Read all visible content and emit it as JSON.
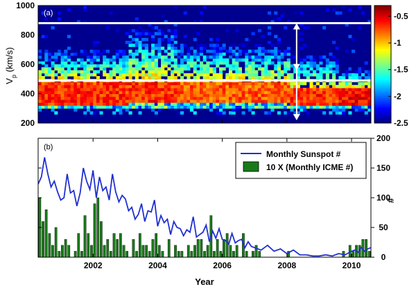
{
  "chart_data": [
    {
      "panel_label": "(a)",
      "type": "heatmap",
      "title": "",
      "ylabel_main": "V",
      "ylabel_sub": "p",
      "ylabel_unit": "(km/s)",
      "xlim": [
        2000.3,
        2010.6
      ],
      "ylim": [
        200,
        1000
      ],
      "yticks": [
        200,
        400,
        600,
        800,
        1000
      ],
      "colorbar": {
        "vmin": -2.5,
        "vmax": -0.3,
        "ticks": [
          -2.5,
          -2,
          -1.5,
          -1,
          -0.5
        ],
        "tick_labels": [
          "-2.5",
          "-2",
          "-1.5",
          "-1",
          "-0.5"
        ],
        "colormap": "jet"
      },
      "background_color": "#00008f",
      "horizontal_lines": [
        880,
        490
      ],
      "line_color": "#ffffff",
      "double_arrow": {
        "x": 2008.3,
        "from": 200,
        "to": 880
      },
      "single_arrow_tip": {
        "x": 2008.3,
        "at": 560
      },
      "profile_summary": [
        {
          "period": "2000.3-2003.0",
          "core_range": [
            320,
            470
          ],
          "core_value": -0.5,
          "tail_to": 680
        },
        {
          "period": "2003.0-2004.5",
          "core_range": [
            330,
            470
          ],
          "core_value": -0.5,
          "tail_to": 830
        },
        {
          "period": "2004.5-2008.0",
          "core_range": [
            330,
            470
          ],
          "core_value": -0.6,
          "tail_to": 720
        },
        {
          "period": "2008.0-2009.5",
          "core_range": [
            310,
            430
          ],
          "core_value": -0.5,
          "tail_to": 640
        },
        {
          "period": "2009.5-2010.6",
          "core_range": [
            310,
            420
          ],
          "core_value": -0.4,
          "tail_to": 560
        }
      ]
    },
    {
      "panel_label": "(b)",
      "type": "line+bar",
      "xlabel": "Year",
      "right_ylabel": "#",
      "xlim": [
        2000.3,
        2010.6
      ],
      "ylim": [
        0,
        200
      ],
      "xticks": [
        2002,
        2004,
        2006,
        2008,
        2010
      ],
      "xtick_labels": [
        "2002",
        "2004",
        "2006",
        "2008",
        "2010"
      ],
      "yticks_right": [
        0,
        50,
        100,
        150,
        200
      ],
      "ytick_labels_right": [
        "0",
        "50",
        "100",
        "150",
        "200"
      ],
      "legend": {
        "position": "top-right",
        "entries": [
          "Monthly Sunspot #",
          "10 X (Monthly ICME #)"
        ]
      },
      "series": [
        {
          "name": "Monthly Sunspot #",
          "type": "line",
          "color": "#1f2fd0",
          "x": [
            2000.3,
            2000.4,
            2000.5,
            2000.6,
            2000.7,
            2000.8,
            2000.9,
            2001.0,
            2001.1,
            2001.2,
            2001.3,
            2001.4,
            2001.5,
            2001.6,
            2001.7,
            2001.8,
            2001.9,
            2002.0,
            2002.1,
            2002.2,
            2002.3,
            2002.4,
            2002.5,
            2002.6,
            2002.7,
            2002.8,
            2002.9,
            2003.0,
            2003.1,
            2003.2,
            2003.3,
            2003.4,
            2003.5,
            2003.6,
            2003.7,
            2003.8,
            2003.9,
            2004.0,
            2004.1,
            2004.2,
            2004.3,
            2004.4,
            2004.5,
            2004.6,
            2004.7,
            2004.8,
            2004.9,
            2005.0,
            2005.1,
            2005.2,
            2005.3,
            2005.4,
            2005.5,
            2005.6,
            2005.7,
            2005.8,
            2005.9,
            2006.0,
            2006.1,
            2006.2,
            2006.3,
            2006.4,
            2006.5,
            2006.6,
            2006.7,
            2006.8,
            2006.9,
            2007.0,
            2007.2,
            2007.4,
            2007.6,
            2007.8,
            2008.0,
            2008.2,
            2008.4,
            2008.6,
            2008.8,
            2009.0,
            2009.2,
            2009.4,
            2009.6,
            2009.8,
            2010.0,
            2010.1,
            2010.2,
            2010.3,
            2010.4,
            2010.5,
            2010.6
          ],
          "values": [
            123,
            135,
            168,
            140,
            118,
            128,
            110,
            96,
            100,
            140,
            108,
            112,
            86,
            108,
            150,
            128,
            114,
            146,
            100,
            135,
            112,
            118,
            96,
            140,
            110,
            93,
            104,
            98,
            78,
            84,
            64,
            72,
            90,
            60,
            78,
            76,
            96,
            52,
            70,
            58,
            64,
            38,
            60,
            50,
            48,
            36,
            46,
            42,
            68,
            34,
            38,
            42,
            54,
            26,
            44,
            32,
            48,
            30,
            28,
            22,
            40,
            24,
            28,
            30,
            16,
            26,
            18,
            16,
            12,
            20,
            10,
            14,
            6,
            12,
            4,
            4,
            2,
            2,
            4,
            2,
            6,
            4,
            10,
            12,
            8,
            16,
            10,
            14,
            16
          ]
        },
        {
          "name": "10 X (Monthly ICME #)",
          "type": "bar",
          "color": "#1a7a1a",
          "x": [
            2000.35,
            2000.45,
            2000.55,
            2000.65,
            2000.75,
            2000.85,
            2000.95,
            2001.05,
            2001.15,
            2001.25,
            2001.35,
            2001.45,
            2001.55,
            2001.65,
            2001.75,
            2001.85,
            2001.95,
            2002.05,
            2002.15,
            2002.25,
            2002.35,
            2002.45,
            2002.55,
            2002.65,
            2002.75,
            2002.85,
            2002.95,
            2003.05,
            2003.15,
            2003.25,
            2003.35,
            2003.45,
            2003.55,
            2003.65,
            2003.75,
            2003.85,
            2003.95,
            2004.05,
            2004.15,
            2004.25,
            2004.35,
            2004.45,
            2004.55,
            2004.65,
            2004.75,
            2004.85,
            2004.95,
            2005.05,
            2005.15,
            2005.25,
            2005.35,
            2005.45,
            2005.55,
            2005.65,
            2005.75,
            2005.85,
            2005.95,
            2006.05,
            2006.15,
            2006.25,
            2006.35,
            2006.45,
            2006.55,
            2006.65,
            2006.75,
            2006.85,
            2006.95,
            2007.05,
            2007.15,
            2007.25,
            2007.35,
            2007.45,
            2007.55,
            2007.65,
            2007.75,
            2007.85,
            2007.95,
            2008.05,
            2008.15,
            2008.25,
            2008.35,
            2008.45,
            2008.55,
            2008.65,
            2008.75,
            2008.85,
            2008.95,
            2009.05,
            2009.15,
            2009.25,
            2009.35,
            2009.45,
            2009.55,
            2009.65,
            2009.75,
            2009.85,
            2009.95,
            2010.05,
            2010.15,
            2010.25,
            2010.35,
            2010.45,
            2010.55
          ],
          "values": [
            100,
            60,
            80,
            40,
            20,
            50,
            10,
            20,
            30,
            20,
            0,
            10,
            40,
            10,
            70,
            40,
            20,
            90,
            100,
            60,
            20,
            30,
            10,
            40,
            30,
            40,
            20,
            10,
            0,
            30,
            10,
            40,
            20,
            20,
            10,
            30,
            40,
            20,
            10,
            0,
            30,
            0,
            20,
            10,
            10,
            0,
            20,
            10,
            20,
            30,
            30,
            10,
            20,
            70,
            10,
            30,
            10,
            30,
            40,
            20,
            10,
            20,
            0,
            40,
            10,
            0,
            10,
            20,
            10,
            0,
            0,
            0,
            0,
            0,
            0,
            0,
            0,
            10,
            0,
            0,
            0,
            0,
            0,
            0,
            0,
            0,
            0,
            0,
            0,
            0,
            0,
            0,
            0,
            0,
            10,
            0,
            20,
            10,
            20,
            20,
            30,
            30,
            10
          ]
        }
      ]
    }
  ]
}
